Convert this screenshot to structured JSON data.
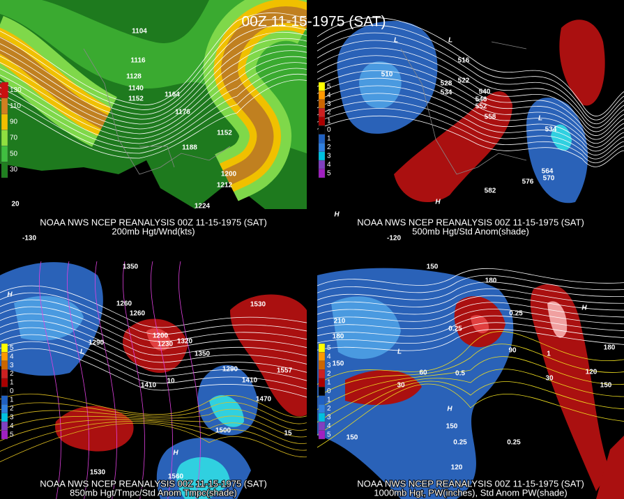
{
  "title": "00Z 11-15-1975 (SAT)",
  "panels": [
    {
      "caption_line1": "NOAA NWS NCEP REANALYSIS 00Z 11-15-1975 (SAT)",
      "caption_line2": "200mb Hgt/Wnd(kts)",
      "legend": [
        "130",
        "110",
        "90",
        "70",
        "50",
        "30"
      ],
      "labels": [
        "1104",
        "1116",
        "1128",
        "1140",
        "1152",
        "1164",
        "1176",
        "1188",
        "1152",
        "1200",
        "1212",
        "1224",
        "20",
        "-130"
      ]
    },
    {
      "caption_line1": "NOAA NWS NCEP REANALYSIS 00Z 11-15-1975 (SAT)",
      "caption_line2": "500mb Hgt/Std Anom(shade)",
      "legend": [
        "5",
        "4",
        "3",
        "2",
        "1",
        "0",
        "1",
        "2",
        "3",
        "4",
        "5"
      ],
      "labels": [
        "510",
        "516",
        "522",
        "528",
        "534",
        "540",
        "546",
        "552",
        "558",
        "534",
        "564",
        "570",
        "576",
        "582",
        "H",
        "H",
        "L",
        "L",
        "L",
        "-120"
      ]
    },
    {
      "caption_line1": "NOAA NWS NCEP REANALYSIS 00Z 11-15-1975 (SAT)",
      "caption_line2": "850mb Hgt/Tmpc/Std Anom Tmpc(shade)",
      "legend": [
        "5",
        "4",
        "3",
        "2",
        "1",
        "0",
        "1",
        "2",
        "3",
        "4",
        "5"
      ],
      "labels": [
        "1350",
        "1260",
        "1260",
        "1290",
        "1200",
        "1230",
        "1320",
        "1350",
        "1410",
        "1290",
        "1410",
        "1470",
        "1500",
        "1530",
        "1557",
        "1530",
        "1560",
        "10",
        "15",
        "H",
        "H",
        "L"
      ]
    },
    {
      "caption_line1": "NOAA NWS NCEP REANALYSIS 00Z 11-15-1975 (SAT)",
      "caption_line2": "1000mb Hgt, PW(inches), Std Anom PW(shade)",
      "legend": [
        "5",
        "4",
        "3",
        "2",
        "1",
        "0",
        "1",
        "2",
        "3",
        "4",
        "5"
      ],
      "labels": [
        "150",
        "180",
        "210",
        "180",
        "150",
        "0.25",
        "0.25",
        "30",
        "60",
        "90",
        "0.5",
        "1",
        "120",
        "150",
        "180",
        "150",
        "0.25",
        "0.25",
        "150",
        "120",
        "30",
        "H",
        "H",
        "L"
      ]
    }
  ]
}
